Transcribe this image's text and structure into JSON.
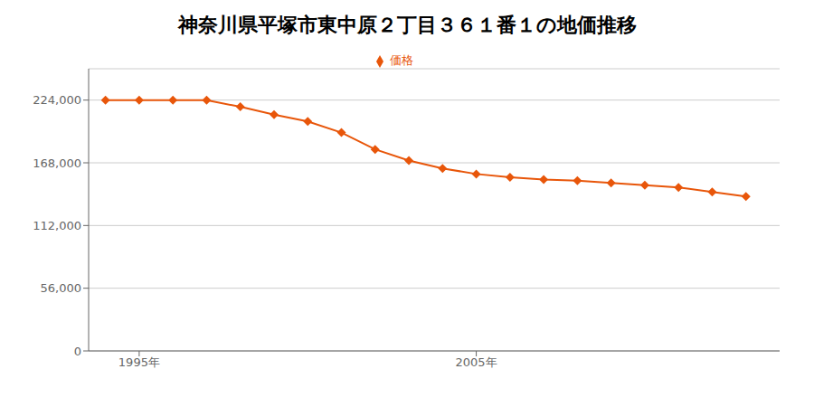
{
  "chart_data": {
    "type": "line",
    "title": "神奈川県平塚市東中原２丁目３６１番１の地価推移",
    "x": [
      1994,
      1995,
      1996,
      1997,
      1998,
      1999,
      2000,
      2001,
      2002,
      2003,
      2004,
      2005,
      2006,
      2007,
      2008,
      2009,
      2010,
      2011,
      2012,
      2013
    ],
    "series": [
      {
        "name": "価格",
        "color": "#e8560a",
        "marker": "diamond",
        "values": [
          224000,
          224000,
          224000,
          224000,
          218000,
          211000,
          205000,
          195000,
          180000,
          170000,
          163000,
          158000,
          155000,
          153000,
          152000,
          150000,
          148000,
          146000,
          142000,
          138000
        ]
      }
    ],
    "xlim": [
      1993.5,
      2014
    ],
    "xticks": [
      {
        "value": 1995,
        "label": "1995年"
      },
      {
        "value": 2005,
        "label": "2005年"
      }
    ],
    "ylim": [
      0,
      252000
    ],
    "yticks": [
      0,
      {
        "value": 56000,
        "label": "56,000"
      },
      {
        "value": 112000,
        "label": "112,000"
      },
      {
        "value": 168000,
        "label": "168,000"
      },
      {
        "value": 224000,
        "label": "224,000"
      }
    ],
    "grid": "y",
    "legend": "top"
  }
}
